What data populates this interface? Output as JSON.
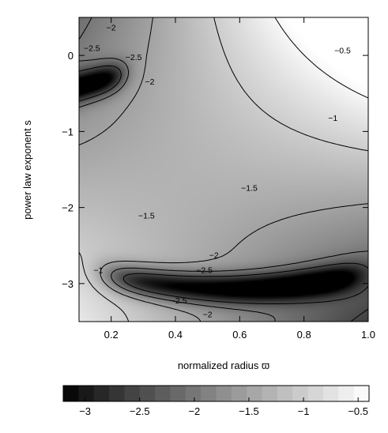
{
  "chart_data": {
    "type": "heatmap",
    "title": "",
    "xlabel": "normalized radius ϖ",
    "ylabel": "power law exponent s",
    "xlim": [
      0.1,
      1.0
    ],
    "ylim": [
      -3.5,
      0.5
    ],
    "x_ticks": [
      {
        "value": 0.2,
        "label": "0.2"
      },
      {
        "value": 0.4,
        "label": "0.4"
      },
      {
        "value": 0.6,
        "label": "0.6"
      },
      {
        "value": 0.8,
        "label": "0.8"
      },
      {
        "value": 1.0,
        "label": "1.0"
      }
    ],
    "y_ticks": [
      {
        "value": 0,
        "label": "0"
      },
      {
        "value": -1,
        "label": "−1"
      },
      {
        "value": -2,
        "label": "−2"
      },
      {
        "value": -3,
        "label": "−3"
      }
    ],
    "colormap": "grayscale (black = low, white = high)",
    "value_range": [
      -3.2,
      -0.4
    ],
    "contour_levels": [
      -2.5,
      -2,
      -1.5,
      -1,
      -0.5
    ],
    "contour_labels": [
      {
        "text": "−2",
        "x": 0.2,
        "y": 0.37
      },
      {
        "text": "−2.5",
        "x": 0.14,
        "y": 0.1
      },
      {
        "text": "−2.5",
        "x": 0.27,
        "y": -0.02
      },
      {
        "text": "−2",
        "x": 0.32,
        "y": -0.34
      },
      {
        "text": "−0.5",
        "x": 0.92,
        "y": 0.07
      },
      {
        "text": "−1",
        "x": 0.89,
        "y": -0.82
      },
      {
        "text": "−1.5",
        "x": 0.63,
        "y": -1.74
      },
      {
        "text": "−1.5",
        "x": 0.31,
        "y": -2.1
      },
      {
        "text": "−1",
        "x": 0.16,
        "y": -2.82
      },
      {
        "text": "−2",
        "x": 0.52,
        "y": -2.62
      },
      {
        "text": "−2.5",
        "x": 0.49,
        "y": -2.82
      },
      {
        "text": "−2.5",
        "x": 0.41,
        "y": -3.22
      },
      {
        "text": "−2",
        "x": 0.5,
        "y": -3.4
      }
    ],
    "colorbar": {
      "orientation": "horizontal",
      "placement": "bottom",
      "range": [
        -3.2,
        -0.4
      ],
      "n_steps": 20,
      "ticks": [
        {
          "value": -3,
          "label": "−3"
        },
        {
          "value": -2.5,
          "label": "−2.5"
        },
        {
          "value": -2,
          "label": "−2"
        },
        {
          "value": -1.5,
          "label": "−1.5"
        },
        {
          "value": -1,
          "label": "−1"
        },
        {
          "value": -0.5,
          "label": "−0.5"
        }
      ]
    }
  }
}
